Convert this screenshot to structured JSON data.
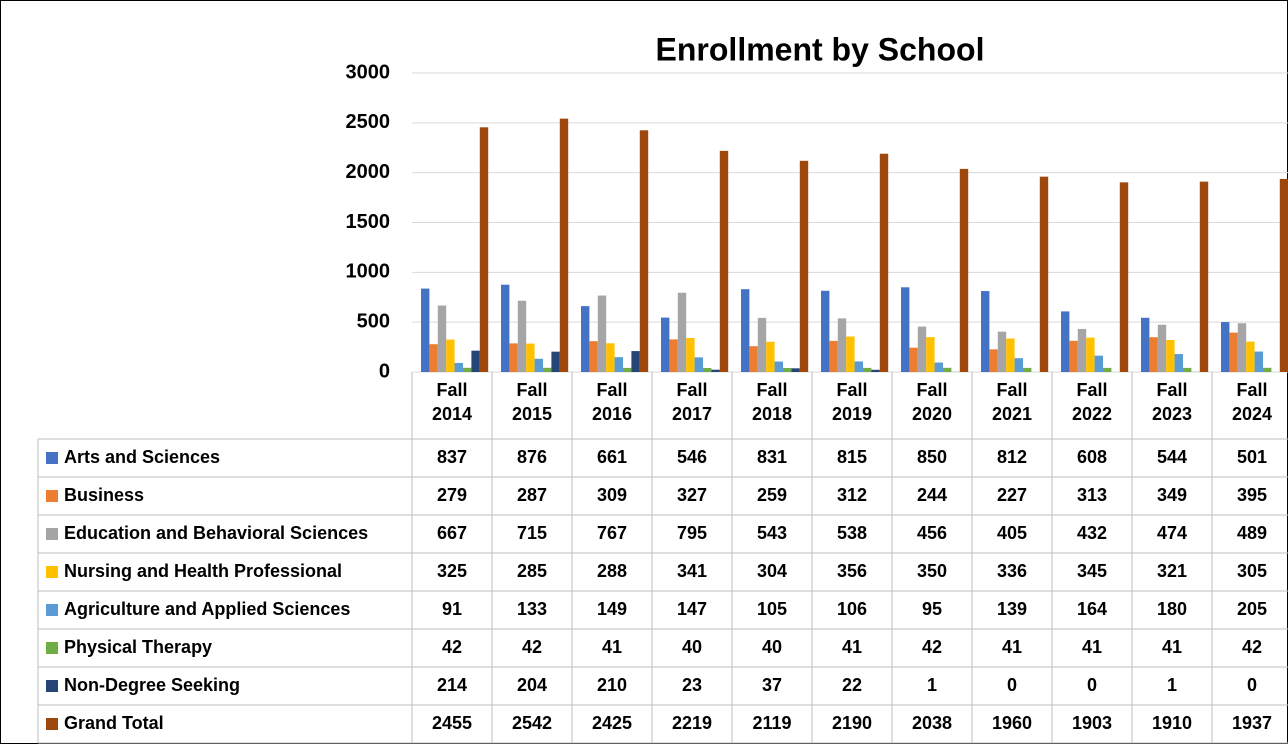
{
  "chart_data": {
    "type": "bar",
    "title": "Enrollment by School",
    "categories": [
      "Fall 2014",
      "Fall 2015",
      "Fall 2016",
      "Fall 2017",
      "Fall 2018",
      "Fall 2019",
      "Fall 2020",
      "Fall 2021",
      "Fall 2022",
      "Fall 2023",
      "Fall 2024"
    ],
    "series": [
      {
        "name": "Arts and Sciences",
        "color": "#4472C4",
        "values": [
          837,
          876,
          661,
          546,
          831,
          815,
          850,
          812,
          608,
          544,
          501
        ]
      },
      {
        "name": "Business",
        "color": "#ED7D31",
        "values": [
          279,
          287,
          309,
          327,
          259,
          312,
          244,
          227,
          313,
          349,
          395
        ]
      },
      {
        "name": "Education and Behavioral Sciences",
        "color": "#A5A5A5",
        "values": [
          667,
          715,
          767,
          795,
          543,
          538,
          456,
          405,
          432,
          474,
          489
        ]
      },
      {
        "name": "Nursing and Health Professional",
        "color": "#FFC000",
        "values": [
          325,
          285,
          288,
          341,
          304,
          356,
          350,
          336,
          345,
          321,
          305
        ]
      },
      {
        "name": "Agriculture and Applied Sciences",
        "color": "#5B9BD5",
        "values": [
          91,
          133,
          149,
          147,
          105,
          106,
          95,
          139,
          164,
          180,
          205
        ]
      },
      {
        "name": "Physical Therapy",
        "color": "#70AD47",
        "values": [
          42,
          42,
          41,
          40,
          40,
          41,
          42,
          41,
          41,
          41,
          42
        ]
      },
      {
        "name": "Non-Degree Seeking",
        "color": "#264478",
        "values": [
          214,
          204,
          210,
          23,
          37,
          22,
          1,
          0,
          0,
          1,
          0
        ]
      },
      {
        "name": "Grand Total",
        "color": "#9E480E",
        "values": [
          2455,
          2542,
          2425,
          2219,
          2119,
          2190,
          2038,
          1960,
          1903,
          1910,
          1937
        ]
      }
    ],
    "ylim": [
      0,
      3000
    ],
    "yticks": [
      0,
      500,
      1000,
      1500,
      2000,
      2500,
      3000
    ],
    "grid": true,
    "data_table": true
  }
}
